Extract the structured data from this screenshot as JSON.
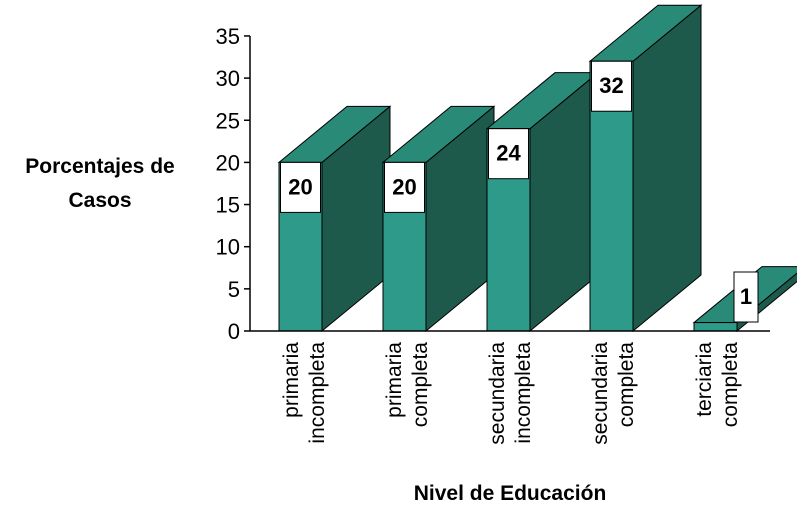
{
  "chart_data": {
    "type": "bar",
    "style": "3d",
    "categories": [
      [
        "primaria",
        "incompleta"
      ],
      [
        "primaria",
        "completa"
      ],
      [
        "secundaria",
        "incompleta"
      ],
      [
        "secundaria",
        "completa"
      ],
      [
        "terciaria",
        "completa"
      ]
    ],
    "values": [
      20,
      20,
      24,
      32,
      1
    ],
    "data_labels": [
      "20",
      "20",
      "24",
      "32",
      "1"
    ],
    "ylabel": [
      "Porcentajes de",
      "Casos"
    ],
    "xlabel": "Nivel de Educación",
    "ylim": [
      0,
      35
    ],
    "yticks": [
      "0",
      "5",
      "10",
      "15",
      "20",
      "25",
      "30",
      "35"
    ],
    "grid": false,
    "legend": "none",
    "colors": {
      "front": "#2e9a8a",
      "top": "#2a8a78",
      "side": "#1e5a4c",
      "stroke": "#000000",
      "label_box": "#ffffff"
    }
  }
}
